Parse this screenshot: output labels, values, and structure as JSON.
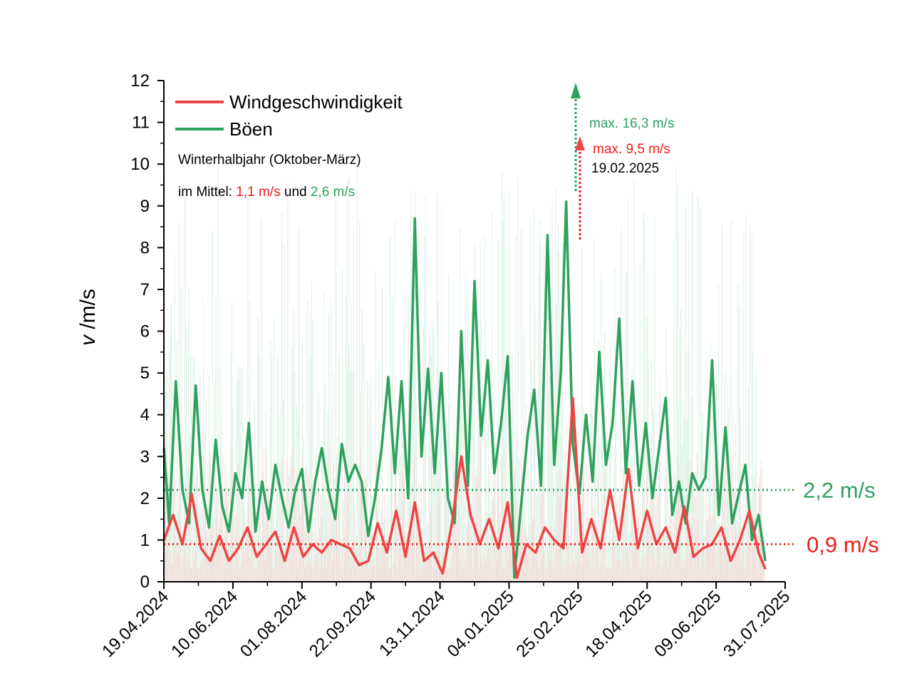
{
  "chart_data": {
    "type": "line",
    "ylabel_italic": "v",
    "ylabel_unit": " /m/s",
    "ylim": [
      0,
      12
    ],
    "y_ticks": [
      "0",
      "1",
      "2",
      "3",
      "4",
      "5",
      "6",
      "7",
      "8",
      "9",
      "10",
      "11",
      "12"
    ],
    "x_tick_labels": [
      "19.04.2024",
      "10.06.2024",
      "01.08.2024",
      "22.09.2024",
      "13.11.2024",
      "04.01.2025",
      "25.02.2025",
      "18.04.2025",
      "09.06.2025",
      "31.07.2025"
    ],
    "x_range": [
      "19.04.2024",
      "31.07.2025"
    ],
    "data_end": "16.07.2025",
    "grid": false,
    "legend_position": "top-left",
    "series": [
      {
        "name": "Windgeschwindigkeit",
        "color": "#ef4444",
        "points": [
          [
            "19.04.2024",
            1.0
          ],
          [
            "26.04.2024",
            1.6
          ],
          [
            "03.05.2024",
            0.9
          ],
          [
            "10.05.2024",
            2.1
          ],
          [
            "17.05.2024",
            0.8
          ],
          [
            "24.05.2024",
            0.5
          ],
          [
            "31.05.2024",
            1.1
          ],
          [
            "07.06.2024",
            0.5
          ],
          [
            "14.06.2024",
            0.8
          ],
          [
            "21.06.2024",
            1.3
          ],
          [
            "28.06.2024",
            0.6
          ],
          [
            "05.07.2024",
            0.9
          ],
          [
            "12.07.2024",
            1.2
          ],
          [
            "19.07.2024",
            0.5
          ],
          [
            "26.07.2024",
            1.3
          ],
          [
            "02.08.2024",
            0.6
          ],
          [
            "09.08.2024",
            0.9
          ],
          [
            "16.08.2024",
            0.7
          ],
          [
            "23.08.2024",
            1.0
          ],
          [
            "30.08.2024",
            0.9
          ],
          [
            "06.09.2024",
            0.8
          ],
          [
            "13.09.2024",
            0.4
          ],
          [
            "20.09.2024",
            0.5
          ],
          [
            "27.09.2024",
            1.4
          ],
          [
            "04.10.2024",
            0.7
          ],
          [
            "11.10.2024",
            1.7
          ],
          [
            "18.10.2024",
            0.6
          ],
          [
            "25.10.2024",
            1.9
          ],
          [
            "01.11.2024",
            0.5
          ],
          [
            "08.11.2024",
            0.7
          ],
          [
            "15.11.2024",
            0.2
          ],
          [
            "22.11.2024",
            1.4
          ],
          [
            "29.11.2024",
            3.0
          ],
          [
            "06.12.2024",
            1.6
          ],
          [
            "13.12.2024",
            0.9
          ],
          [
            "20.12.2024",
            1.5
          ],
          [
            "27.12.2024",
            0.8
          ],
          [
            "03.01.2025",
            1.9
          ],
          [
            "10.01.2025",
            0.1
          ],
          [
            "17.01.2025",
            0.9
          ],
          [
            "24.01.2025",
            0.7
          ],
          [
            "31.01.2025",
            1.3
          ],
          [
            "07.02.2025",
            1.0
          ],
          [
            "14.02.2025",
            0.8
          ],
          [
            "21.02.2025",
            4.4
          ],
          [
            "28.02.2025",
            0.7
          ],
          [
            "07.03.2025",
            1.5
          ],
          [
            "14.03.2025",
            0.8
          ],
          [
            "21.03.2025",
            2.2
          ],
          [
            "28.03.2025",
            1.0
          ],
          [
            "04.04.2025",
            2.7
          ],
          [
            "11.04.2025",
            0.8
          ],
          [
            "18.04.2025",
            1.7
          ],
          [
            "25.04.2025",
            0.9
          ],
          [
            "02.05.2025",
            1.3
          ],
          [
            "09.05.2025",
            0.7
          ],
          [
            "16.05.2025",
            1.8
          ],
          [
            "23.05.2025",
            0.6
          ],
          [
            "30.05.2025",
            0.8
          ],
          [
            "06.06.2025",
            0.9
          ],
          [
            "13.06.2025",
            1.3
          ],
          [
            "20.06.2025",
            0.5
          ],
          [
            "27.06.2025",
            1.0
          ],
          [
            "04.07.2025",
            1.7
          ],
          [
            "11.07.2025",
            0.7
          ],
          [
            "16.07.2025",
            0.3
          ]
        ]
      },
      {
        "name": "Böen",
        "color": "#2fa15f",
        "points": [
          [
            "19.04.2024",
            3.2
          ],
          [
            "23.04.2024",
            1.4
          ],
          [
            "28.04.2024",
            4.8
          ],
          [
            "03.05.2024",
            2.2
          ],
          [
            "08.05.2024",
            1.4
          ],
          [
            "13.05.2024",
            4.7
          ],
          [
            "18.05.2024",
            2.2
          ],
          [
            "23.05.2024",
            1.3
          ],
          [
            "28.05.2024",
            3.4
          ],
          [
            "02.06.2024",
            1.8
          ],
          [
            "07.06.2024",
            1.2
          ],
          [
            "12.06.2024",
            2.6
          ],
          [
            "17.06.2024",
            2.0
          ],
          [
            "22.06.2024",
            3.8
          ],
          [
            "27.06.2024",
            1.2
          ],
          [
            "02.07.2024",
            2.4
          ],
          [
            "07.07.2024",
            1.5
          ],
          [
            "12.07.2024",
            2.8
          ],
          [
            "17.07.2024",
            2.0
          ],
          [
            "22.07.2024",
            1.3
          ],
          [
            "27.07.2024",
            2.2
          ],
          [
            "01.08.2024",
            2.7
          ],
          [
            "06.08.2024",
            1.2
          ],
          [
            "11.08.2024",
            2.4
          ],
          [
            "16.08.2024",
            3.2
          ],
          [
            "21.08.2024",
            2.2
          ],
          [
            "26.08.2024",
            1.5
          ],
          [
            "31.08.2024",
            3.3
          ],
          [
            "05.09.2024",
            2.4
          ],
          [
            "10.09.2024",
            2.8
          ],
          [
            "15.09.2024",
            2.4
          ],
          [
            "20.09.2024",
            1.1
          ],
          [
            "25.09.2024",
            2.0
          ],
          [
            "30.09.2024",
            3.2
          ],
          [
            "05.10.2024",
            4.9
          ],
          [
            "10.10.2024",
            2.6
          ],
          [
            "15.10.2024",
            4.8
          ],
          [
            "20.10.2024",
            2.0
          ],
          [
            "25.10.2024",
            8.7
          ],
          [
            "30.10.2024",
            3.0
          ],
          [
            "04.11.2024",
            5.1
          ],
          [
            "09.11.2024",
            2.6
          ],
          [
            "14.11.2024",
            5.0
          ],
          [
            "19.11.2024",
            2.0
          ],
          [
            "24.11.2024",
            1.4
          ],
          [
            "29.11.2024",
            6.0
          ],
          [
            "04.12.2024",
            2.3
          ],
          [
            "09.12.2024",
            7.2
          ],
          [
            "14.12.2024",
            3.5
          ],
          [
            "19.12.2024",
            5.3
          ],
          [
            "24.12.2024",
            2.6
          ],
          [
            "29.12.2024",
            3.8
          ],
          [
            "03.01.2025",
            5.4
          ],
          [
            "08.01.2025",
            0.1
          ],
          [
            "13.01.2025",
            1.8
          ],
          [
            "18.01.2025",
            3.5
          ],
          [
            "23.01.2025",
            4.6
          ],
          [
            "28.01.2025",
            2.3
          ],
          [
            "02.02.2025",
            8.3
          ],
          [
            "07.02.2025",
            2.8
          ],
          [
            "12.02.2025",
            5.0
          ],
          [
            "16.02.2025",
            9.1
          ],
          [
            "21.02.2025",
            3.3
          ],
          [
            "26.02.2025",
            2.1
          ],
          [
            "03.03.2025",
            4.0
          ],
          [
            "08.03.2025",
            2.4
          ],
          [
            "13.03.2025",
            5.5
          ],
          [
            "18.03.2025",
            2.8
          ],
          [
            "23.03.2025",
            3.8
          ],
          [
            "28.03.2025",
            6.3
          ],
          [
            "02.04.2025",
            2.6
          ],
          [
            "07.04.2025",
            4.8
          ],
          [
            "12.04.2025",
            2.3
          ],
          [
            "17.04.2025",
            3.8
          ],
          [
            "22.04.2025",
            2.0
          ],
          [
            "27.04.2025",
            3.2
          ],
          [
            "02.05.2025",
            4.4
          ],
          [
            "07.05.2025",
            1.6
          ],
          [
            "12.05.2025",
            2.4
          ],
          [
            "17.05.2025",
            1.4
          ],
          [
            "22.05.2025",
            2.6
          ],
          [
            "27.05.2025",
            2.2
          ],
          [
            "01.06.2025",
            2.5
          ],
          [
            "06.06.2025",
            5.3
          ],
          [
            "11.06.2025",
            1.6
          ],
          [
            "16.06.2025",
            3.7
          ],
          [
            "21.06.2025",
            1.4
          ],
          [
            "26.06.2025",
            2.1
          ],
          [
            "01.07.2025",
            2.8
          ],
          [
            "06.07.2025",
            1.0
          ],
          [
            "11.07.2025",
            1.6
          ],
          [
            "16.07.2025",
            0.5
          ]
        ]
      }
    ],
    "reference_lines": [
      {
        "value": 2.2,
        "label": "2,2 m/s",
        "color": "#2fa15f"
      },
      {
        "value": 0.9,
        "label": "0,9 m/s",
        "color": "#ee1c1c"
      }
    ],
    "annotation": {
      "note_line1": "Winterhalbjahr (Oktober-März)",
      "note_prefix": "im Mittel: ",
      "note_val1": "1,1 m/s",
      "note_mid": " und ",
      "note_val2": "2,6 m/s",
      "max_gust": "max. 16,3 m/s",
      "max_wind": "max. 9,5 m/s",
      "max_date": "19.02.2025"
    }
  }
}
